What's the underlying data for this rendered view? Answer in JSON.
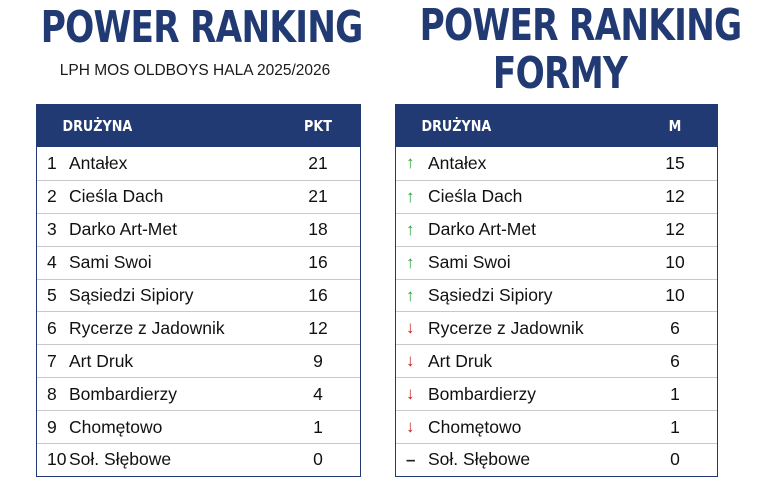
{
  "left": {
    "title": "POWER RANKING",
    "subtitle": "LPH MOS OLDBOYS HALA 2025/2026",
    "header_team": "DRUŻYNA",
    "header_value": "PKT",
    "rows": [
      {
        "pos": "1",
        "team": "Antałex",
        "value": "21"
      },
      {
        "pos": "2",
        "team": "Cieśla Dach",
        "value": "21"
      },
      {
        "pos": "3",
        "team": "Darko Art-Met",
        "value": "18"
      },
      {
        "pos": "4",
        "team": "Sami Swoi",
        "value": "16"
      },
      {
        "pos": "5",
        "team": "Sąsiedzi Sipiory",
        "value": "16"
      },
      {
        "pos": "6",
        "team": "Rycerze z Jadownik",
        "value": "12"
      },
      {
        "pos": "7",
        "team": "Art Druk",
        "value": "9"
      },
      {
        "pos": "8",
        "team": "Bombardierzy",
        "value": "4"
      },
      {
        "pos": "9",
        "team": "Chomętowo",
        "value": "1"
      },
      {
        "pos": "10",
        "team": "Soł. Słębowe",
        "value": "0"
      }
    ]
  },
  "right": {
    "title_line1": "POWER RANKING",
    "title_line2": "FORMY",
    "header_team": "DRUŻYNA",
    "header_value": "M",
    "rows": [
      {
        "trend": "up",
        "team": "Antałex",
        "value": "15"
      },
      {
        "trend": "up",
        "team": "Cieśla Dach",
        "value": "12"
      },
      {
        "trend": "up",
        "team": "Darko Art-Met",
        "value": "12"
      },
      {
        "trend": "up",
        "team": "Sami Swoi",
        "value": "10"
      },
      {
        "trend": "up",
        "team": "Sąsiedzi Sipiory",
        "value": "10"
      },
      {
        "trend": "down",
        "team": "Rycerze z Jadownik",
        "value": "6"
      },
      {
        "trend": "down",
        "team": "Art Druk",
        "value": "6"
      },
      {
        "trend": "down",
        "team": "Bombardierzy",
        "value": "1"
      },
      {
        "trend": "down",
        "team": "Chomętowo",
        "value": "1"
      },
      {
        "trend": "flat",
        "team": "Soł. Słębowe",
        "value": "0"
      }
    ]
  },
  "colors": {
    "navy": "#213a73",
    "up": "#22a23a",
    "down": "#c81e1e"
  },
  "icons": {
    "up": "arrow-up-icon",
    "down": "arrow-down-icon",
    "flat": "dash-icon"
  }
}
